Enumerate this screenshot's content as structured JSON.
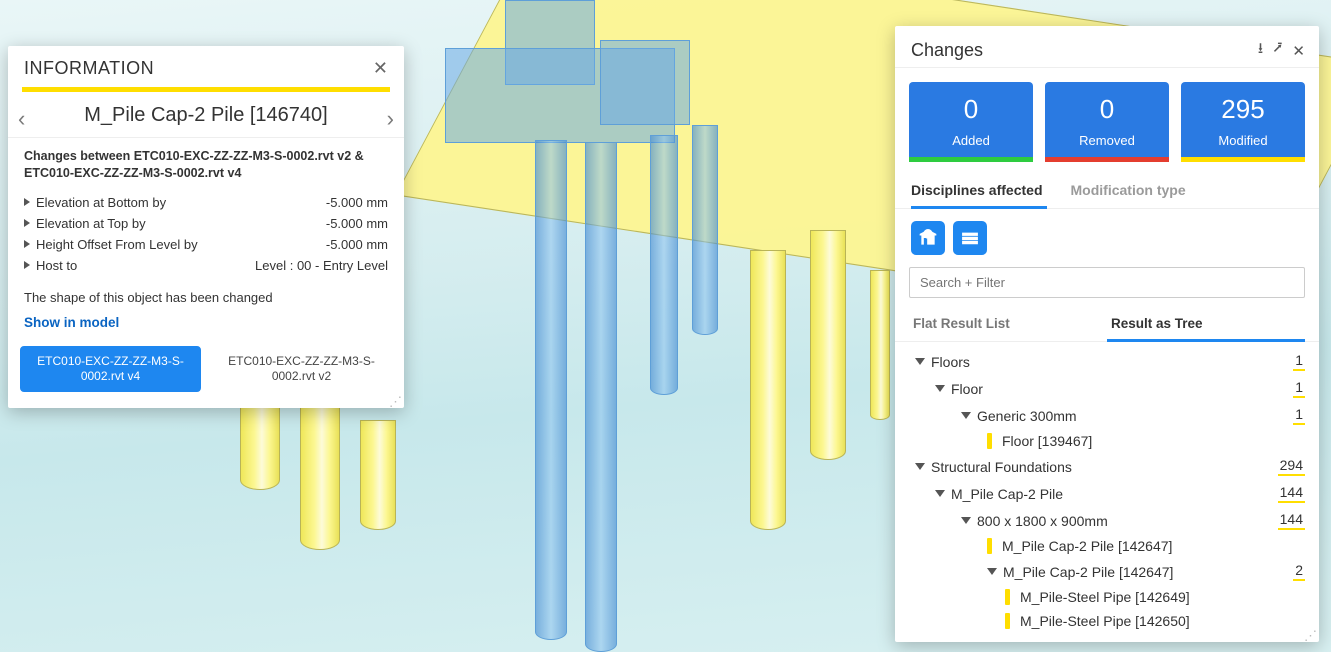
{
  "info_panel": {
    "header": "INFORMATION",
    "title": "M_Pile Cap-2 Pile [146740]",
    "compare_text": "Changes between ETC010-EXC-ZZ-ZZ-M3-S-0002.rvt v2 & ETC010-EXC-ZZ-ZZ-M3-S-0002.rvt v4",
    "props": [
      {
        "k": "Elevation at Bottom by",
        "v": "-5.000 mm"
      },
      {
        "k": "Elevation at Top by",
        "v": "-5.000 mm"
      },
      {
        "k": "Height Offset From Level by",
        "v": "-5.000 mm"
      },
      {
        "k": "Host to",
        "v": "Level : 00 - Entry Level"
      }
    ],
    "shape_note": "The shape of this object has been changed",
    "show_link": "Show in model",
    "version_buttons": {
      "primary": "ETC010-EXC-ZZ-ZZ-M3-S-\n0002.rvt v4",
      "secondary": "ETC010-EXC-ZZ-ZZ-M3-S-\n0002.rvt v2"
    }
  },
  "changes_panel": {
    "header": "Changes",
    "cards": [
      {
        "num": "0",
        "label": "Added",
        "bar": "green"
      },
      {
        "num": "0",
        "label": "Removed",
        "bar": "red"
      },
      {
        "num": "295",
        "label": "Modified",
        "bar": "yellow"
      }
    ],
    "tabs": {
      "left": "Disciplines affected",
      "right": "Modification type"
    },
    "search_placeholder": "Search + Filter",
    "subtabs": {
      "left": "Flat Result List",
      "right": "Result as Tree"
    },
    "tree": [
      {
        "indent": 1,
        "caret": true,
        "label": "Floors",
        "count": "1"
      },
      {
        "indent": 2,
        "caret": true,
        "label": "Floor",
        "count": "1"
      },
      {
        "indent": 3,
        "caret": true,
        "label": "Generic 300mm",
        "count": "1"
      },
      {
        "indent": 4,
        "leaf": true,
        "label": "Floor [139467]"
      },
      {
        "indent": 1,
        "caret": true,
        "label": "Structural Foundations",
        "count": "294"
      },
      {
        "indent": 2,
        "caret": true,
        "label": "M_Pile Cap-2 Pile",
        "count": "144"
      },
      {
        "indent": 3,
        "caret": true,
        "label": "800 x 1800 x 900mm",
        "count": "144"
      },
      {
        "indent": 4,
        "leaf": true,
        "label": "M_Pile Cap-2 Pile [142647]"
      },
      {
        "indent": 4,
        "caret": true,
        "label": "M_Pile Cap-2 Pile [142647]",
        "count": "2"
      },
      {
        "indent": 5,
        "leaf": true,
        "label": "M_Pile-Steel Pipe [142649]"
      },
      {
        "indent": 5,
        "leaf": true,
        "label": "M_Pile-Steel Pipe [142650]"
      }
    ]
  },
  "colors": {
    "accent_blue": "#1e87f0",
    "accent_yellow": "#ffde00",
    "added_green": "#2ecc40",
    "removed_red": "#e43d2f",
    "yellow_solid": "#fcf791",
    "blue_glass": "rgba(106,170,230,.55)"
  }
}
